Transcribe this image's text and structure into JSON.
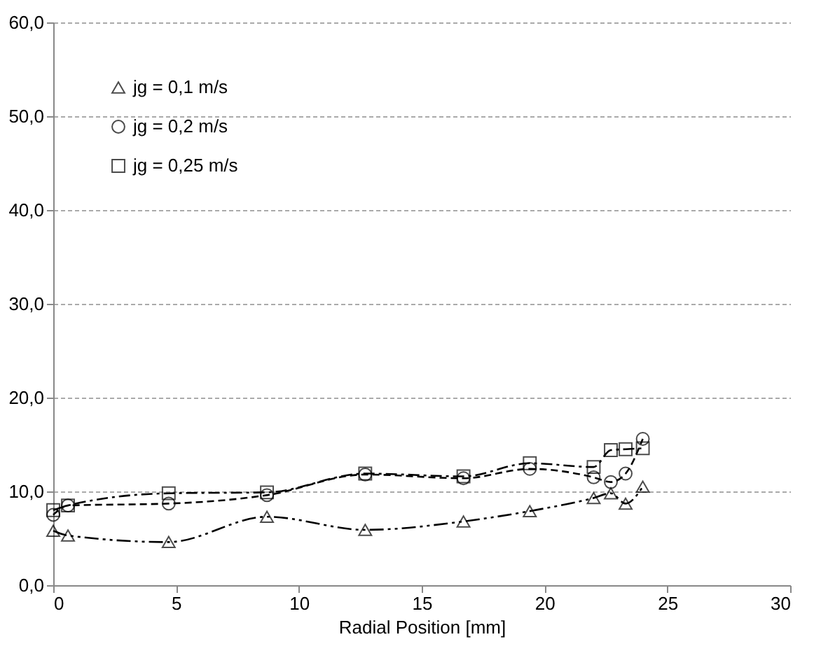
{
  "chart_data": {
    "type": "line",
    "xlabel": "Radial Position [mm]",
    "xlim": [
      0,
      30
    ],
    "xticks": [
      0,
      5,
      10,
      15,
      20,
      25,
      30
    ],
    "ylim": [
      0,
      60
    ],
    "yticks": [
      {
        "value": 0,
        "label": "0,0"
      },
      {
        "value": 10,
        "label": "10,0"
      },
      {
        "value": 20,
        "label": "20,0"
      },
      {
        "value": 30,
        "label": "30,0"
      },
      {
        "value": 40,
        "label": "40,0"
      },
      {
        "value": 50,
        "label": "50,0"
      },
      {
        "value": 60,
        "label": "60,0"
      }
    ],
    "grid": "y",
    "legend": "top left",
    "line_style": "dashed",
    "series": [
      {
        "name": "jg = 0,1 m/s",
        "color": "#000000",
        "marker": "triangle",
        "x": [
          0,
          0.6,
          4.7,
          8.7,
          12.7,
          16.7,
          19.4,
          22,
          22.7,
          23.3,
          24
        ],
        "values": [
          5.8,
          5.3,
          4.6,
          7.3,
          5.9,
          6.8,
          7.9,
          9.3,
          9.8,
          8.7,
          10.5
        ]
      },
      {
        "name": "jg = 0,2 m/s",
        "color": "#000000",
        "marker": "circle",
        "x": [
          0,
          0.6,
          4.7,
          8.7,
          12.7,
          16.7,
          19.4,
          22,
          22.7,
          23.3,
          24
        ],
        "values": [
          7.5,
          8.5,
          8.7,
          9.6,
          11.8,
          11.4,
          12.4,
          11.5,
          11.0,
          11.9,
          15.6
        ]
      },
      {
        "name": "jg = 0,25 m/s",
        "color": "#000000",
        "marker": "square",
        "x": [
          0,
          0.6,
          4.7,
          8.7,
          12.7,
          16.7,
          19.4,
          22,
          22.7,
          23.3,
          24
        ],
        "values": [
          8.0,
          8.5,
          9.8,
          9.9,
          11.9,
          11.6,
          13.0,
          12.6,
          14.4,
          14.5,
          14.6
        ]
      }
    ]
  }
}
